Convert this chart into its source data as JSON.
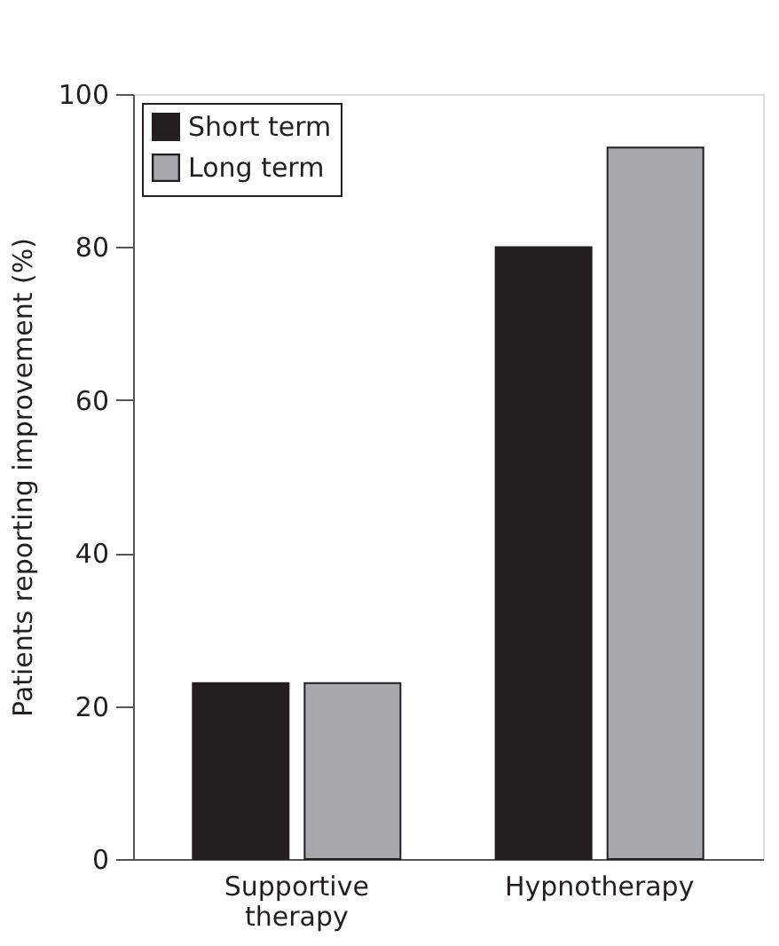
{
  "chart_data": {
    "type": "bar",
    "ylabel": "Patients reporting improvement (%)",
    "categories": [
      "Supportive therapy",
      "Hypnotherapy"
    ],
    "series": [
      {
        "name": "Short term",
        "color": "#231f20",
        "values": [
          23,
          80
        ]
      },
      {
        "name": "Long term",
        "color": "#a7a9ac",
        "values": [
          23,
          93
        ]
      }
    ],
    "ylim": [
      0,
      100
    ],
    "yticks": [
      0,
      20,
      40,
      60,
      80,
      100
    ],
    "grid": false,
    "legend": "top left"
  }
}
